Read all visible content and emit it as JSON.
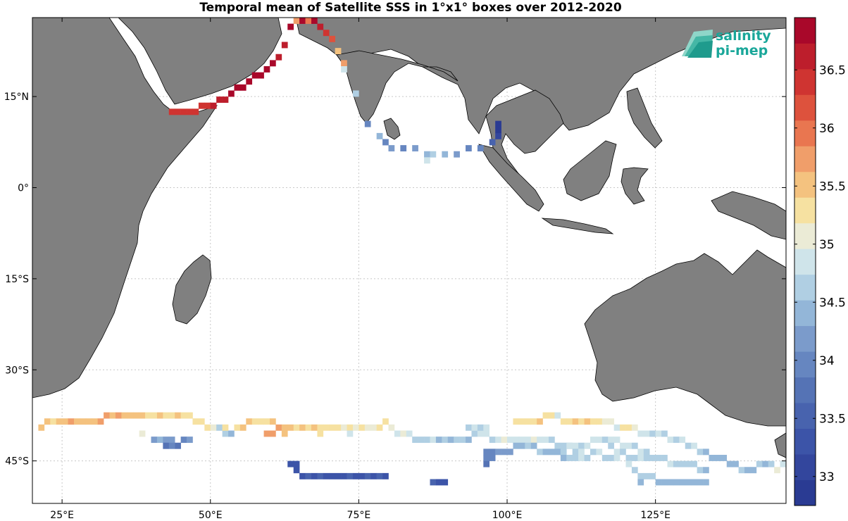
{
  "title": "Temporal mean of Satellite SSS in 1°x1° boxes over 2012-2020",
  "logo": {
    "line1": "salinity",
    "line2": "pi-mep",
    "color": "#1aa79a"
  },
  "colors": {
    "land": "#808080",
    "ocean": "#ffffff",
    "grid": "#c8c8c8",
    "frame": "#000000"
  },
  "map": {
    "projection": "equirectangular",
    "lon_range": [
      20,
      147
    ],
    "lat_range": [
      -52,
      28
    ],
    "lon_ticks": [
      25,
      50,
      75,
      100,
      125
    ],
    "lon_tick_labels": [
      "25°E",
      "50°E",
      "75°E",
      "100°E",
      "125°E"
    ],
    "lat_ticks": [
      15,
      0,
      -15,
      -30,
      -45
    ],
    "lat_tick_labels": [
      "15°N",
      "0°",
      "15°S",
      "30°S",
      "45°S"
    ],
    "grid": true
  },
  "colorbar": {
    "range": [
      32.75,
      36.95
    ],
    "ticks": [
      33,
      33.5,
      34,
      34.5,
      35,
      35.5,
      36,
      36.5
    ],
    "tick_labels": [
      "33",
      "33.5",
      "34",
      "34.5",
      "35",
      "35.5",
      "36",
      "36.5"
    ],
    "colors": [
      "#2a3b93",
      "#33469d",
      "#3c54a8",
      "#4863ae",
      "#5573b5",
      "#6686c0",
      "#7b9bcb",
      "#93b6d8",
      "#b0cfe3",
      "#cfe4ea",
      "#ebebd6",
      "#f6e1a1",
      "#f4c27f",
      "#f09e6a",
      "#e97650",
      "#dd523d",
      "#cf3431",
      "#bd1e2c",
      "#a9082a"
    ]
  },
  "chart_data": {
    "type": "heatmap",
    "title": "Temporal mean of Satellite SSS in 1°x1° boxes over 2012-2020",
    "value_range": [
      32.75,
      36.95
    ],
    "cells": [
      [
        43,
        12,
        36.3
      ],
      [
        44,
        12,
        36.3
      ],
      [
        45,
        12,
        36.4
      ],
      [
        46,
        12,
        36.5
      ],
      [
        47,
        12,
        36.3
      ],
      [
        48,
        13,
        36.4
      ],
      [
        49,
        13,
        36.4
      ],
      [
        50,
        13,
        36.6
      ],
      [
        51,
        14,
        36.6
      ],
      [
        52,
        14,
        36.7
      ],
      [
        53,
        15,
        36.8
      ],
      [
        54,
        16,
        36.8
      ],
      [
        55,
        16,
        36.9
      ],
      [
        56,
        17,
        36.8
      ],
      [
        57,
        18,
        36.9
      ],
      [
        58,
        18,
        36.8
      ],
      [
        59,
        19,
        36.8
      ],
      [
        60,
        20,
        36.9
      ],
      [
        61,
        21,
        36.6
      ],
      [
        62,
        23,
        36.7
      ],
      [
        63,
        26,
        36.9
      ],
      [
        64,
        27,
        35.7
      ],
      [
        65,
        27,
        36.9
      ],
      [
        66,
        27,
        36.0
      ],
      [
        67,
        27,
        36.9
      ],
      [
        68,
        26,
        36.6
      ],
      [
        69,
        25,
        36.3
      ],
      [
        70,
        24,
        36.1
      ],
      [
        71,
        22,
        35.6
      ],
      [
        72,
        20,
        35.7
      ],
      [
        72,
        19,
        34.8
      ],
      [
        74,
        15,
        34.6
      ],
      [
        76,
        10,
        33.9
      ],
      [
        78,
        8,
        34.3
      ],
      [
        79,
        7,
        33.9
      ],
      [
        80,
        6,
        34.1
      ],
      [
        82,
        6,
        34.0
      ],
      [
        84,
        6,
        34.2
      ],
      [
        86,
        5,
        34.5
      ],
      [
        87,
        5,
        34.6
      ],
      [
        86,
        4,
        34.8
      ],
      [
        89,
        5,
        34.5
      ],
      [
        91,
        5,
        34.2
      ],
      [
        93,
        6,
        34.0
      ],
      [
        95,
        6,
        33.9
      ],
      [
        97,
        7,
        33.6
      ],
      [
        98,
        8,
        33.0
      ],
      [
        98,
        9,
        32.9
      ],
      [
        98,
        10,
        32.8
      ],
      [
        21,
        -40,
        35.6
      ],
      [
        22,
        -39,
        35.5
      ],
      [
        23,
        -39,
        35.4
      ],
      [
        24,
        -39,
        35.6
      ],
      [
        25,
        -39,
        35.5
      ],
      [
        26,
        -39,
        35.7
      ],
      [
        27,
        -39,
        35.6
      ],
      [
        28,
        -39,
        35.5
      ],
      [
        29,
        -39,
        35.6
      ],
      [
        30,
        -39,
        35.5
      ],
      [
        31,
        -39,
        35.7
      ],
      [
        32,
        -38,
        35.8
      ],
      [
        33,
        -38,
        35.6
      ],
      [
        34,
        -38,
        35.7
      ],
      [
        35,
        -38,
        35.6
      ],
      [
        36,
        -38,
        35.5
      ],
      [
        37,
        -38,
        35.6
      ],
      [
        38,
        -38,
        35.5
      ],
      [
        39,
        -38,
        35.3
      ],
      [
        40,
        -38,
        35.4
      ],
      [
        41,
        -38,
        35.5
      ],
      [
        42,
        -38,
        35.4
      ],
      [
        43,
        -38,
        35.3
      ],
      [
        44,
        -38,
        35.5
      ],
      [
        45,
        -38,
        35.4
      ],
      [
        46,
        -38,
        35.3
      ],
      [
        47,
        -39,
        35.2
      ],
      [
        48,
        -39,
        35.3
      ],
      [
        49,
        -40,
        35.2
      ],
      [
        50,
        -40,
        35.1
      ],
      [
        51,
        -40,
        34.7
      ],
      [
        52,
        -41,
        34.6
      ],
      [
        53,
        -41,
        34.3
      ],
      [
        52,
        -40,
        35.4
      ],
      [
        54,
        -40,
        35.3
      ],
      [
        55,
        -40,
        35.6
      ],
      [
        56,
        -39,
        35.5
      ],
      [
        57,
        -39,
        35.3
      ],
      [
        58,
        -39,
        35.4
      ],
      [
        59,
        -39,
        35.3
      ],
      [
        60,
        -39,
        35.5
      ],
      [
        61,
        -40,
        35.8
      ],
      [
        62,
        -40,
        35.6
      ],
      [
        63,
        -40,
        35.5
      ],
      [
        64,
        -40,
        35.4
      ],
      [
        65,
        -40,
        35.5
      ],
      [
        66,
        -40,
        35.4
      ],
      [
        67,
        -40,
        35.5
      ],
      [
        68,
        -40,
        35.4
      ],
      [
        69,
        -40,
        35.3
      ],
      [
        70,
        -40,
        35.2
      ],
      [
        71,
        -40,
        35.2
      ],
      [
        72,
        -40,
        35.1
      ],
      [
        73,
        -40,
        35.2
      ],
      [
        74,
        -40,
        35.1
      ],
      [
        75,
        -40,
        35.2
      ],
      [
        76,
        -40,
        35.1
      ],
      [
        77,
        -40,
        35.1
      ],
      [
        78,
        -40,
        35.2
      ],
      [
        79,
        -39,
        35.2
      ],
      [
        80,
        -40,
        35.1
      ],
      [
        59,
        -41,
        35.7
      ],
      [
        60,
        -41,
        35.8
      ],
      [
        62,
        -41,
        35.5
      ],
      [
        68,
        -41,
        35.4
      ],
      [
        73,
        -41,
        34.8
      ],
      [
        38,
        -41,
        35.0
      ],
      [
        40,
        -42,
        34.2
      ],
      [
        41,
        -42,
        34.3
      ],
      [
        42,
        -42,
        34.2
      ],
      [
        43,
        -42,
        34.1
      ],
      [
        44,
        -43,
        33.8
      ],
      [
        45,
        -42,
        33.9
      ],
      [
        46,
        -42,
        34.1
      ],
      [
        42,
        -43,
        33.8
      ],
      [
        43,
        -43,
        33.9
      ],
      [
        81,
        -41,
        34.9
      ],
      [
        82,
        -41,
        35.0
      ],
      [
        83,
        -41,
        34.8
      ],
      [
        84,
        -42,
        34.6
      ],
      [
        85,
        -42,
        34.7
      ],
      [
        86,
        -42,
        34.6
      ],
      [
        87,
        -42,
        34.8
      ],
      [
        88,
        -42,
        34.5
      ],
      [
        89,
        -42,
        34.6
      ],
      [
        90,
        -42,
        34.5
      ],
      [
        91,
        -42,
        34.6
      ],
      [
        92,
        -42,
        34.7
      ],
      [
        93,
        -42,
        34.5
      ],
      [
        94,
        -41,
        34.6
      ],
      [
        95,
        -41,
        34.8
      ],
      [
        96,
        -41,
        34.8
      ],
      [
        97,
        -42,
        34.7
      ],
      [
        98,
        -42,
        34.9
      ],
      [
        99,
        -42,
        35.0
      ],
      [
        100,
        -42,
        34.9
      ],
      [
        101,
        -42,
        34.8
      ],
      [
        102,
        -42,
        34.9
      ],
      [
        103,
        -42,
        34.8
      ],
      [
        104,
        -42,
        35.0
      ],
      [
        105,
        -42,
        34.9
      ],
      [
        106,
        -42,
        34.8
      ],
      [
        107,
        -42,
        34.7
      ],
      [
        108,
        -43,
        34.6
      ],
      [
        109,
        -43,
        34.7
      ],
      [
        110,
        -43,
        34.6
      ],
      [
        111,
        -43,
        34.8
      ],
      [
        112,
        -43,
        34.7
      ],
      [
        113,
        -43,
        34.8
      ],
      [
        93,
        -40,
        34.7
      ],
      [
        94,
        -40,
        34.8
      ],
      [
        95,
        -40,
        34.7
      ],
      [
        96,
        -40,
        34.8
      ],
      [
        101,
        -39,
        35.2
      ],
      [
        102,
        -39,
        35.3
      ],
      [
        103,
        -39,
        35.2
      ],
      [
        104,
        -39,
        35.4
      ],
      [
        105,
        -39,
        35.5
      ],
      [
        106,
        -38,
        35.3
      ],
      [
        107,
        -38,
        35.2
      ],
      [
        108,
        -38,
        34.8
      ],
      [
        109,
        -39,
        35.3
      ],
      [
        110,
        -39,
        35.4
      ],
      [
        111,
        -39,
        35.6
      ],
      [
        112,
        -39,
        35.4
      ],
      [
        113,
        -39,
        35.5
      ],
      [
        114,
        -39,
        35.3
      ],
      [
        115,
        -39,
        35.2
      ],
      [
        116,
        -39,
        35.1
      ],
      [
        117,
        -39,
        35.0
      ],
      [
        118,
        -40,
        34.9
      ],
      [
        119,
        -40,
        35.2
      ],
      [
        120,
        -40,
        35.3
      ],
      [
        121,
        -40,
        35.0
      ],
      [
        122,
        -41,
        34.8
      ],
      [
        123,
        -41,
        34.8
      ],
      [
        124,
        -41,
        34.7
      ],
      [
        125,
        -41,
        34.8
      ],
      [
        126,
        -41,
        34.7
      ],
      [
        127,
        -42,
        34.8
      ],
      [
        128,
        -42,
        34.7
      ],
      [
        129,
        -42,
        34.8
      ],
      [
        130,
        -43,
        34.7
      ],
      [
        131,
        -43,
        34.8
      ],
      [
        132,
        -44,
        34.6
      ],
      [
        133,
        -44,
        34.5
      ],
      [
        114,
        -42,
        34.8
      ],
      [
        115,
        -42,
        34.8
      ],
      [
        116,
        -42,
        34.7
      ],
      [
        117,
        -42,
        34.8
      ],
      [
        118,
        -42,
        34.8
      ],
      [
        119,
        -43,
        34.8
      ],
      [
        120,
        -43,
        34.8
      ],
      [
        121,
        -43,
        34.7
      ],
      [
        122,
        -44,
        34.8
      ],
      [
        123,
        -44,
        34.7
      ],
      [
        117,
        -43,
        34.7
      ],
      [
        118,
        -44,
        34.8
      ],
      [
        119,
        -44,
        34.7
      ],
      [
        96,
        -44,
        33.9
      ],
      [
        97,
        -44,
        34.0
      ],
      [
        98,
        -44,
        34.1
      ],
      [
        99,
        -44,
        34.2
      ],
      [
        100,
        -44,
        34.1
      ],
      [
        101,
        -43,
        34.3
      ],
      [
        102,
        -43,
        34.4
      ],
      [
        103,
        -43,
        34.6
      ],
      [
        104,
        -43,
        34.5
      ],
      [
        105,
        -44,
        34.6
      ],
      [
        106,
        -44,
        34.3
      ],
      [
        107,
        -44,
        34.4
      ],
      [
        108,
        -44,
        34.5
      ],
      [
        109,
        -44,
        34.6
      ],
      [
        110,
        -43,
        34.8
      ],
      [
        111,
        -44,
        34.7
      ],
      [
        112,
        -44,
        34.8
      ],
      [
        96,
        -45,
        33.9
      ],
      [
        97,
        -45,
        34.0
      ],
      [
        96,
        -46,
        33.8
      ],
      [
        109,
        -45,
        34.5
      ],
      [
        110,
        -45,
        34.6
      ],
      [
        111,
        -45,
        34.7
      ],
      [
        112,
        -45,
        34.8
      ],
      [
        113,
        -45,
        34.7
      ],
      [
        114,
        -44,
        34.7
      ],
      [
        115,
        -44,
        34.8
      ],
      [
        116,
        -45,
        34.7
      ],
      [
        117,
        -45,
        34.6
      ],
      [
        118,
        -45,
        34.8
      ],
      [
        120,
        -45,
        34.7
      ],
      [
        121,
        -45,
        34.6
      ],
      [
        122,
        -45,
        34.8
      ],
      [
        123,
        -45,
        34.7
      ],
      [
        124,
        -45,
        34.6
      ],
      [
        125,
        -45,
        34.7
      ],
      [
        126,
        -45,
        34.6
      ],
      [
        127,
        -46,
        34.8
      ],
      [
        128,
        -46,
        34.7
      ],
      [
        129,
        -46,
        34.6
      ],
      [
        130,
        -46,
        34.7
      ],
      [
        131,
        -46,
        34.6
      ],
      [
        132,
        -47,
        34.7
      ],
      [
        133,
        -47,
        34.5
      ],
      [
        134,
        -45,
        34.5
      ],
      [
        135,
        -45,
        34.4
      ],
      [
        136,
        -45,
        34.5
      ],
      [
        137,
        -46,
        34.4
      ],
      [
        138,
        -46,
        34.3
      ],
      [
        139,
        -47,
        34.6
      ],
      [
        140,
        -47,
        34.3
      ],
      [
        141,
        -47,
        34.5
      ],
      [
        142,
        -46,
        34.7
      ],
      [
        143,
        -46,
        34.4
      ],
      [
        144,
        -46,
        34.6
      ],
      [
        145,
        -47,
        35.1
      ],
      [
        146,
        -46,
        34.8
      ],
      [
        120,
        -46,
        34.8
      ],
      [
        121,
        -47,
        34.7
      ],
      [
        122,
        -48,
        34.6
      ],
      [
        123,
        -48,
        34.6
      ],
      [
        124,
        -48,
        34.7
      ],
      [
        125,
        -49,
        34.5
      ],
      [
        126,
        -49,
        34.4
      ],
      [
        127,
        -49,
        34.5
      ],
      [
        128,
        -49,
        34.4
      ],
      [
        129,
        -49,
        34.4
      ],
      [
        130,
        -49,
        34.4
      ],
      [
        131,
        -49,
        34.3
      ],
      [
        132,
        -49,
        34.4
      ],
      [
        133,
        -49,
        34.3
      ],
      [
        122,
        -49,
        34.4
      ],
      [
        63,
        -46,
        33.3
      ],
      [
        64,
        -46,
        33.4
      ],
      [
        64,
        -47,
        33.2
      ],
      [
        65,
        -48,
        33.4
      ],
      [
        66,
        -48,
        33.5
      ],
      [
        67,
        -48,
        33.4
      ],
      [
        68,
        -48,
        33.5
      ],
      [
        69,
        -48,
        33.4
      ],
      [
        70,
        -48,
        33.3
      ],
      [
        71,
        -48,
        33.4
      ],
      [
        72,
        -48,
        33.3
      ],
      [
        73,
        -48,
        33.5
      ],
      [
        74,
        -48,
        33.4
      ],
      [
        75,
        -48,
        33.3
      ],
      [
        76,
        -48,
        33.5
      ],
      [
        77,
        -48,
        33.4
      ],
      [
        78,
        -48,
        33.5
      ],
      [
        79,
        -48,
        33.3
      ],
      [
        87,
        -49,
        33.5
      ],
      [
        88,
        -49,
        33.4
      ],
      [
        89,
        -49,
        33.3
      ]
    ]
  }
}
